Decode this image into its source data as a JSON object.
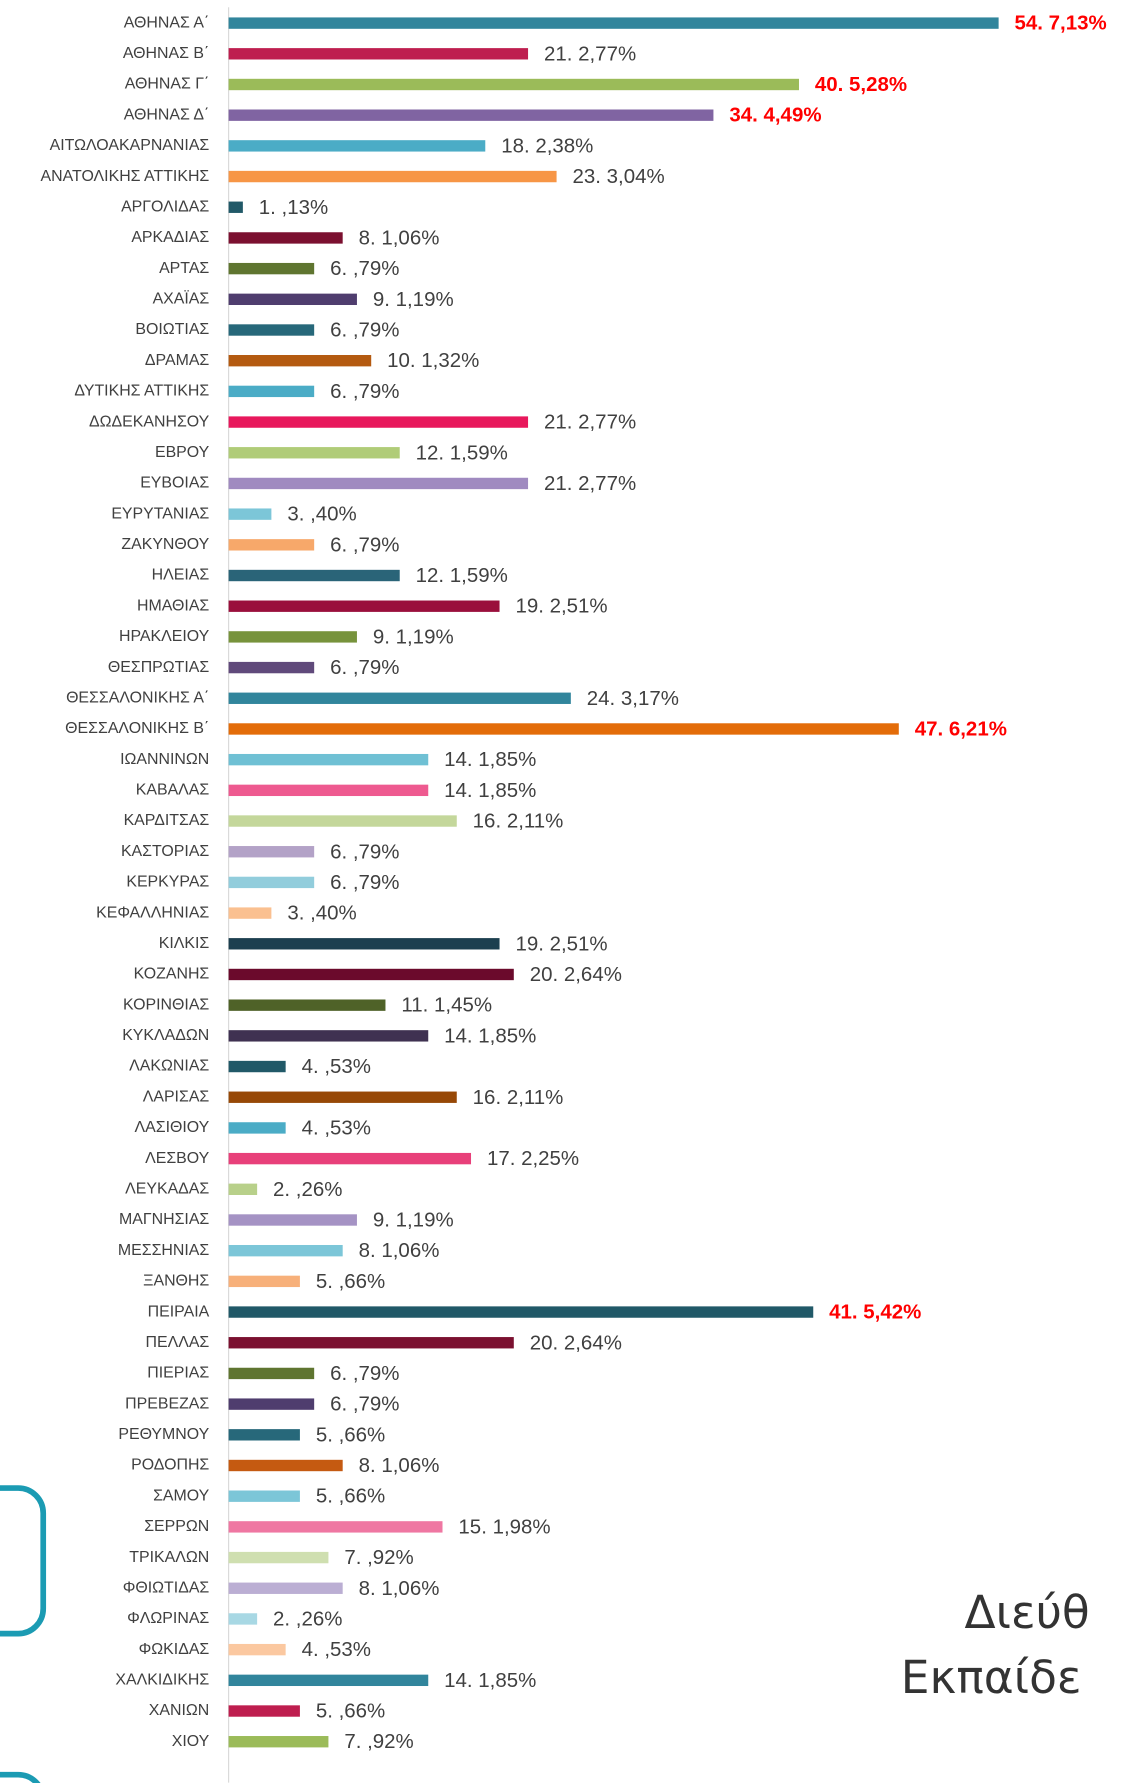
{
  "chart_data": {
    "type": "hbar",
    "categories": [
      "ΑΘΗΝΑΣ Α΄",
      "ΑΘΗΝΑΣ Β΄",
      "ΑΘΗΝΑΣ Γ΄",
      "ΑΘΗΝΑΣ Δ΄",
      "ΑΙΤΩΛΟΑΚΑΡΝΑΝΙΑΣ",
      "ΑΝΑΤΟΛΙΚΗΣ ΑΤΤΙΚΗΣ",
      "ΑΡΓΟΛΙΔΑΣ",
      "ΑΡΚΑΔΙΑΣ",
      "ΑΡΤΑΣ",
      "ΑΧΑΪΑΣ",
      "ΒΟΙΩΤΙΑΣ",
      "ΔΡΑΜΑΣ",
      "ΔΥΤΙΚΗΣ ΑΤΤΙΚΗΣ",
      "ΔΩΔΕΚΑΝΗΣΟΥ",
      "ΕΒΡΟΥ",
      "ΕΥΒΟΙΑΣ",
      "ΕΥΡΥΤΑΝΙΑΣ",
      "ΖΑΚΥΝΘΟΥ",
      "ΗΛΕΙΑΣ",
      "ΗΜΑΘΙΑΣ",
      "ΗΡΑΚΛΕΙΟΥ",
      "ΘΕΣΠΡΩΤΙΑΣ",
      "ΘΕΣΣΑΛΟΝΙΚΗΣ Α΄",
      "ΘΕΣΣΑΛΟΝΙΚΗΣ Β΄",
      "ΙΩΑΝΝΙΝΩΝ",
      "ΚΑΒΑΛΑΣ",
      "ΚΑΡΔΙΤΣΑΣ",
      "ΚΑΣΤΟΡΙΑΣ",
      "ΚΕΡΚΥΡΑΣ",
      "ΚΕΦΑΛΛΗΝΙΑΣ",
      "ΚΙΛΚΙΣ",
      "ΚΟΖΑΝΗΣ",
      "ΚΟΡΙΝΘΙΑΣ",
      "ΚΥΚΛΑΔΩΝ",
      "ΛΑΚΩΝΙΑΣ",
      "ΛΑΡΙΣΑΣ",
      "ΛΑΣΙΘΙΟΥ",
      "ΛΕΣΒΟΥ",
      "ΛΕΥΚΑΔΑΣ",
      "ΜΑΓΝΗΣΙΑΣ",
      "ΜΕΣΣΗΝΙΑΣ",
      "ΞΑΝΘΗΣ",
      "ΠΕΙΡΑΙΑ",
      "ΠΕΛΛΑΣ",
      "ΠΙΕΡΙΑΣ",
      "ΠΡΕΒΕΖΑΣ",
      "ΡΕΘΥΜΝΟΥ",
      "ΡΟΔΟΠΗΣ",
      "ΣΑΜΟΥ",
      "ΣΕΡΡΩΝ",
      "ΤΡΙΚΑΛΩΝ",
      "ΦΘΙΩΤΙΔΑΣ",
      "ΦΛΩΡΙΝΑΣ",
      "ΦΩΚΙΔΑΣ",
      "ΧΑΛΚΙΔΙΚΗΣ",
      "ΧΑΝΙΩΝ",
      "ΧΙΟΥ"
    ],
    "values": [
      54,
      21,
      40,
      34,
      18,
      23,
      1,
      8,
      6,
      9,
      6,
      10,
      6,
      21,
      12,
      21,
      3,
      6,
      12,
      19,
      9,
      6,
      24,
      47,
      14,
      14,
      16,
      6,
      6,
      3,
      19,
      20,
      11,
      14,
      4,
      16,
      4,
      17,
      2,
      9,
      8,
      5,
      41,
      20,
      6,
      6,
      5,
      8,
      5,
      15,
      7,
      8,
      2,
      4,
      14,
      5,
      7
    ],
    "value_labels": [
      "54. 7,13%",
      "21. 2,77%",
      "40. 5,28%",
      "34. 4,49%",
      "18. 2,38%",
      "23. 3,04%",
      "1. ,13%",
      "8. 1,06%",
      "6. ,79%",
      "9. 1,19%",
      "6. ,79%",
      "10. 1,32%",
      "6. ,79%",
      "21. 2,77%",
      "12. 1,59%",
      "21. 2,77%",
      "3. ,40%",
      "6. ,79%",
      "12. 1,59%",
      "19. 2,51%",
      "9. 1,19%",
      "6. ,79%",
      "24. 3,17%",
      "47. 6,21%",
      "14. 1,85%",
      "14. 1,85%",
      "16. 2,11%",
      "6. ,79%",
      "6. ,79%",
      "3. ,40%",
      "19. 2,51%",
      "20. 2,64%",
      "11. 1,45%",
      "14. 1,85%",
      "4. ,53%",
      "16. 2,11%",
      "4. ,53%",
      "17. 2,25%",
      "2. ,26%",
      "9. 1,19%",
      "8. 1,06%",
      "5. ,66%",
      "41. 5,42%",
      "20. 2,64%",
      "6. ,79%",
      "6. ,79%",
      "5. ,66%",
      "8. 1,06%",
      "5. ,66%",
      "15. 1,98%",
      "7. ,92%",
      "8. 1,06%",
      "2. ,26%",
      "4. ,53%",
      "14. 1,85%",
      "5. ,66%",
      "7. ,92%"
    ],
    "colors": [
      "#31859c",
      "#be1e4f",
      "#9bbb59",
      "#8064a2",
      "#4bacc6",
      "#f79646",
      "#215968",
      "#7b1030",
      "#5f7530",
      "#4f3d6e",
      "#27687a",
      "#b45a10",
      "#4bacc6",
      "#e8185c",
      "#b0cc78",
      "#a08ac0",
      "#7cc6d8",
      "#f7a86a",
      "#2a6478",
      "#9a0f3c",
      "#77933c",
      "#604a7b",
      "#31859c",
      "#e36c09",
      "#6fc0d4",
      "#ee5a90",
      "#c4d79b",
      "#b3a2c7",
      "#92cddc",
      "#fac090",
      "#1c3f4f",
      "#6b0a2c",
      "#4f6228",
      "#3f3151",
      "#215968",
      "#974806",
      "#4bacc6",
      "#e8407a",
      "#b8d08a",
      "#a593c4",
      "#7cc6d8",
      "#f7b07a",
      "#215968",
      "#7b1030",
      "#5f7530",
      "#4f3d6e",
      "#27687a",
      "#c55a11",
      "#7cc6d8",
      "#ef77a2",
      "#cfdfb0",
      "#bbaed3",
      "#a8d8e4",
      "#fbc8a0",
      "#31859c",
      "#be1e4f",
      "#9bbb59"
    ],
    "value_label_colors": [
      "#ff0000",
      "#404040",
      "#ff0000",
      "#ff0000",
      "#404040",
      "#404040",
      "#404040",
      "#404040",
      "#404040",
      "#404040",
      "#404040",
      "#404040",
      "#404040",
      "#404040",
      "#404040",
      "#404040",
      "#404040",
      "#404040",
      "#404040",
      "#404040",
      "#404040",
      "#404040",
      "#404040",
      "#ff0000",
      "#404040",
      "#404040",
      "#404040",
      "#404040",
      "#404040",
      "#404040",
      "#404040",
      "#404040",
      "#404040",
      "#404040",
      "#404040",
      "#404040",
      "#404040",
      "#404040",
      "#404040",
      "#404040",
      "#404040",
      "#404040",
      "#ff0000",
      "#404040",
      "#404040",
      "#404040",
      "#404040",
      "#404040",
      "#404040",
      "#404040",
      "#404040",
      "#404040",
      "#404040",
      "#404040",
      "#404040",
      "#404040",
      "#404040"
    ]
  },
  "background_text": [
    "Διεύθ",
    "Εκπαίδε"
  ]
}
